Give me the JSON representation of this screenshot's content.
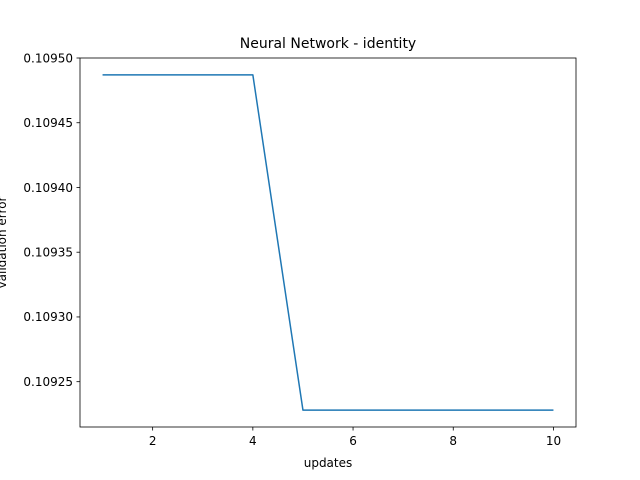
{
  "chart_data": {
    "type": "line",
    "title": "Neural Network - identity",
    "xlabel": "updates",
    "ylabel": "validation error",
    "x": [
      1,
      2,
      3,
      4,
      5,
      6,
      7,
      8,
      9,
      10
    ],
    "series": [
      {
        "values": [
          0.109487,
          0.109487,
          0.109487,
          0.109487,
          0.109228,
          0.109228,
          0.109228,
          0.109228,
          0.109228,
          0.109228
        ],
        "color": "#1f77b4"
      }
    ],
    "xlim": [
      0.55,
      10.45
    ],
    "ylim": [
      0.109215,
      0.1095
    ],
    "xticks": [
      2,
      4,
      6,
      8,
      10
    ],
    "xtick_labels": [
      "2",
      "4",
      "6",
      "8",
      "10"
    ],
    "yticks": [
      0.10925,
      0.1093,
      0.10935,
      0.1094,
      0.10945,
      0.1095
    ],
    "ytick_labels": [
      "0.10925",
      "0.10930",
      "0.10935",
      "0.10940",
      "0.10945",
      "0.10950"
    ],
    "grid": false,
    "legend": false
  }
}
